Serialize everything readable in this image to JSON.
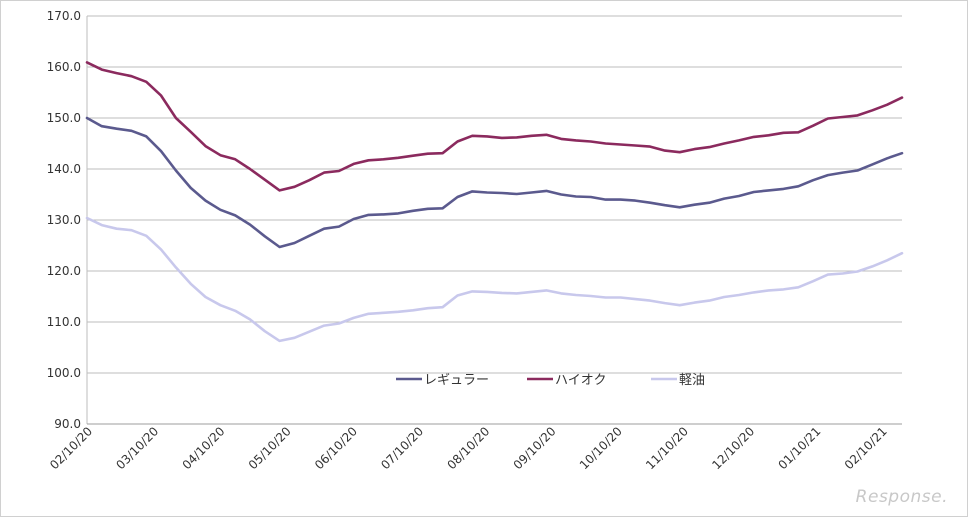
{
  "chart_data": {
    "type": "line",
    "title": "",
    "xlabel": "",
    "ylabel": "",
    "ylim": [
      90,
      170
    ],
    "yticks": [
      "90.0",
      "100.0",
      "110.0",
      "120.0",
      "130.0",
      "140.0",
      "150.0",
      "160.0",
      "170.0"
    ],
    "grid": true,
    "legend_position": "lower-center",
    "x_tick_labels": [
      "02/10/20",
      "03/10/20",
      "04/10/20",
      "05/10/20",
      "06/10/20",
      "07/10/20",
      "08/10/20",
      "09/10/20",
      "10/10/20",
      "11/10/20",
      "12/10/20",
      "01/10/21",
      "02/10/21"
    ],
    "colors": {
      "regular": "#5b5a8e",
      "highoctane": "#8b2a5e",
      "diesel": "#c8c8ec"
    },
    "series": [
      {
        "name": "レギュラー",
        "key": "regular",
        "values": [
          150.0,
          148.4,
          147.9,
          147.5,
          146.4,
          143.5,
          139.7,
          136.3,
          133.8,
          132.0,
          130.9,
          129.1,
          126.8,
          124.7,
          125.5,
          126.9,
          128.3,
          128.7,
          130.2,
          131.0,
          131.1,
          131.3,
          131.8,
          132.2,
          132.3,
          134.5,
          135.6,
          135.4,
          135.3,
          135.1,
          135.4,
          135.7,
          135.0,
          134.6,
          134.5,
          134.0,
          134.0,
          133.8,
          133.4,
          132.9,
          132.5,
          133.0,
          133.4,
          134.2,
          134.7,
          135.5,
          135.8,
          136.1,
          136.6,
          137.8,
          138.8,
          139.3,
          139.7,
          140.9,
          142.1,
          143.1
        ]
      },
      {
        "name": "ハイオク",
        "key": "highoctane",
        "values": [
          160.9,
          159.5,
          158.8,
          158.2,
          157.1,
          154.4,
          150.0,
          147.3,
          144.5,
          142.7,
          141.9,
          140.0,
          137.9,
          135.8,
          136.5,
          137.8,
          139.3,
          139.6,
          141.0,
          141.7,
          141.9,
          142.2,
          142.6,
          143.0,
          143.1,
          145.4,
          146.5,
          146.4,
          146.1,
          146.2,
          146.5,
          146.7,
          145.9,
          145.6,
          145.4,
          145.0,
          144.8,
          144.6,
          144.4,
          143.6,
          143.3,
          143.9,
          144.3,
          145.0,
          145.6,
          146.3,
          146.6,
          147.1,
          147.2,
          148.5,
          149.9,
          150.2,
          150.5,
          151.5,
          152.6,
          154.0
        ]
      },
      {
        "name": "軽油",
        "key": "diesel",
        "values": [
          130.4,
          129.0,
          128.3,
          128.0,
          126.9,
          124.2,
          120.7,
          117.5,
          114.9,
          113.3,
          112.2,
          110.5,
          108.2,
          106.3,
          106.9,
          108.1,
          109.3,
          109.7,
          110.8,
          111.6,
          111.8,
          112.0,
          112.3,
          112.7,
          112.9,
          115.2,
          116.0,
          115.9,
          115.7,
          115.6,
          115.9,
          116.2,
          115.6,
          115.3,
          115.1,
          114.8,
          114.8,
          114.5,
          114.2,
          113.7,
          113.3,
          113.8,
          114.2,
          114.9,
          115.3,
          115.8,
          116.2,
          116.4,
          116.8,
          118.0,
          119.3,
          119.5,
          119.9,
          120.9,
          122.1,
          123.5
        ]
      }
    ]
  },
  "watermark": "Response."
}
